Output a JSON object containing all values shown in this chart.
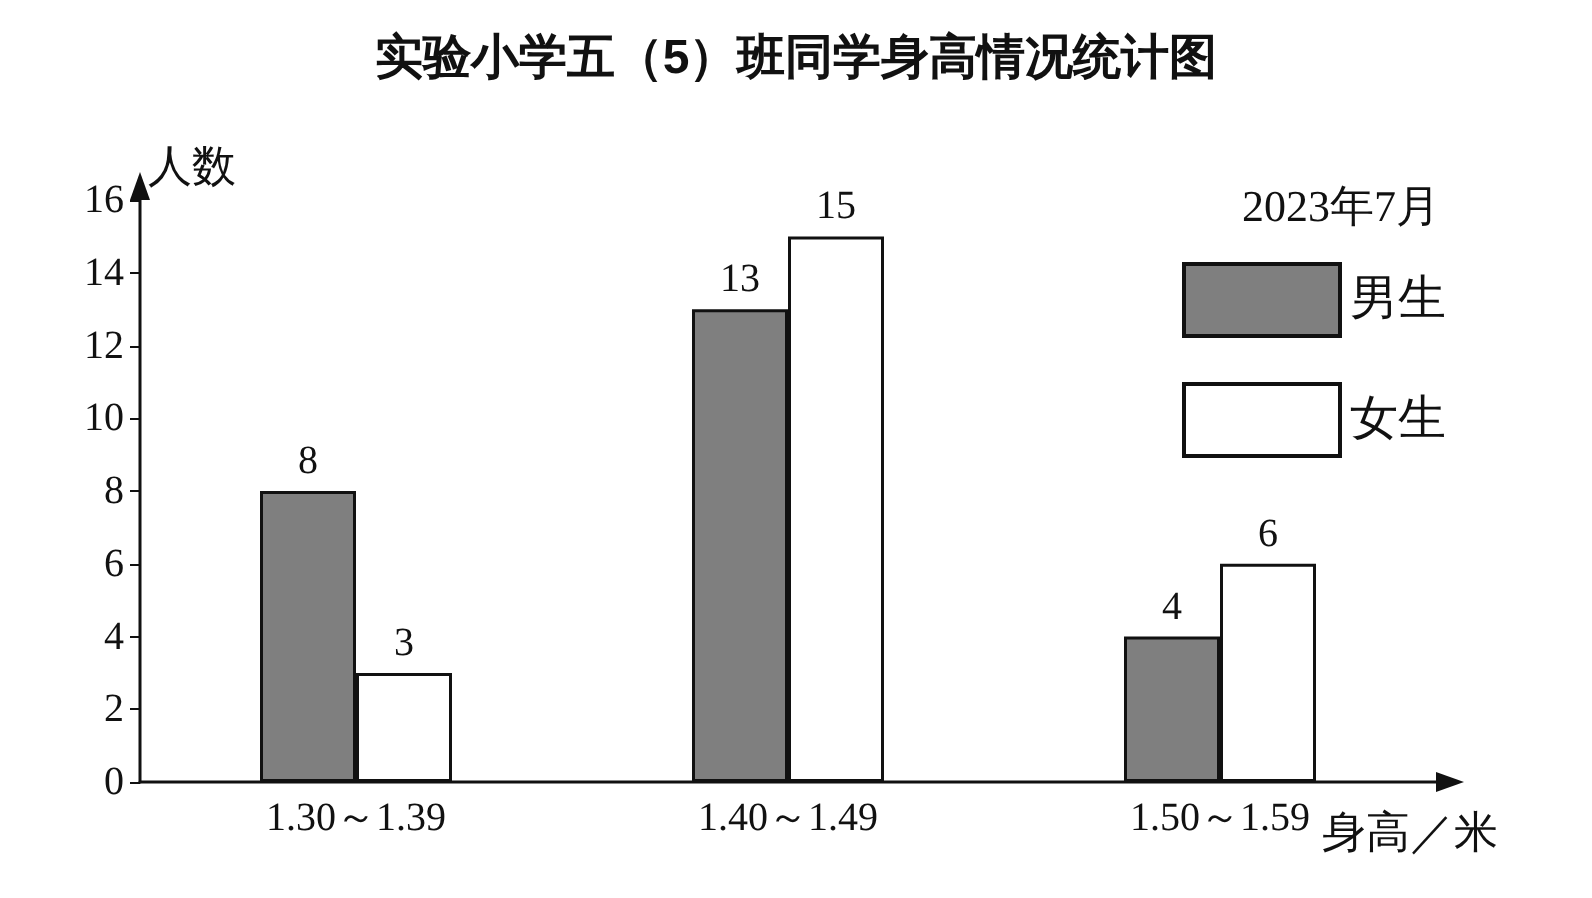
{
  "chart_data": {
    "type": "bar",
    "title": "实验小学五（5）班同学身高情况统计图",
    "ylabel": "人数",
    "xlabel": "身高／米",
    "legend_title": "2023年7月",
    "categories": [
      "1.30～1.39",
      "1.40～1.49",
      "1.50～1.59"
    ],
    "series": [
      {
        "name": "男生",
        "color": "#7f7f7f",
        "values": [
          8,
          13,
          4
        ]
      },
      {
        "name": "女生",
        "color": "#ffffff",
        "values": [
          3,
          15,
          6
        ]
      }
    ],
    "ylim": [
      0,
      16
    ],
    "yticks": [
      0,
      2,
      4,
      6,
      8,
      10,
      12,
      14,
      16
    ],
    "data_labels": true,
    "legend": "top right",
    "grid": false
  }
}
